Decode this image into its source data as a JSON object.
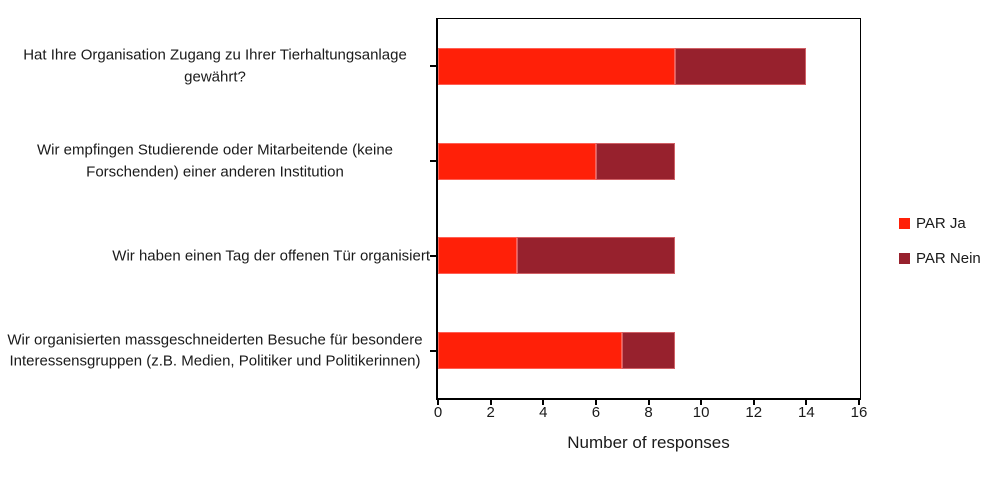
{
  "chart_data": {
    "type": "bar",
    "orientation": "horizontal",
    "stacked": true,
    "title": "",
    "categories": [
      "Hat Ihre Organisation Zugang zu Ihrer Tierhaltungsanlage gewährt?",
      "Wir empfingen Studierende oder Mitarbeitende (keine Forschenden) einer anderen Institution",
      "Wir haben einen Tag der offenen Tür organisiert",
      "Wir organisierten massgeschneiderten Besuche für besondere Interessensgruppen (z.B. Medien, Politiker und Politikerinnen)"
    ],
    "series": [
      {
        "name": "PAR Ja",
        "color": "#FF2008",
        "values": [
          9,
          6,
          3,
          7
        ]
      },
      {
        "name": "PAR Nein",
        "color": "#97212D",
        "values": [
          5,
          3,
          6,
          2
        ]
      }
    ],
    "totals": [
      14,
      9,
      9,
      9
    ],
    "xlabel": "Number of responses",
    "xlim": [
      0,
      16
    ],
    "xticks": [
      0,
      2,
      4,
      6,
      8,
      10,
      12,
      14,
      16
    ],
    "grid": false,
    "legend_position": "right"
  },
  "colors": {
    "axis": "#000000",
    "text": "#1a1a1a",
    "background": "#ffffff"
  }
}
